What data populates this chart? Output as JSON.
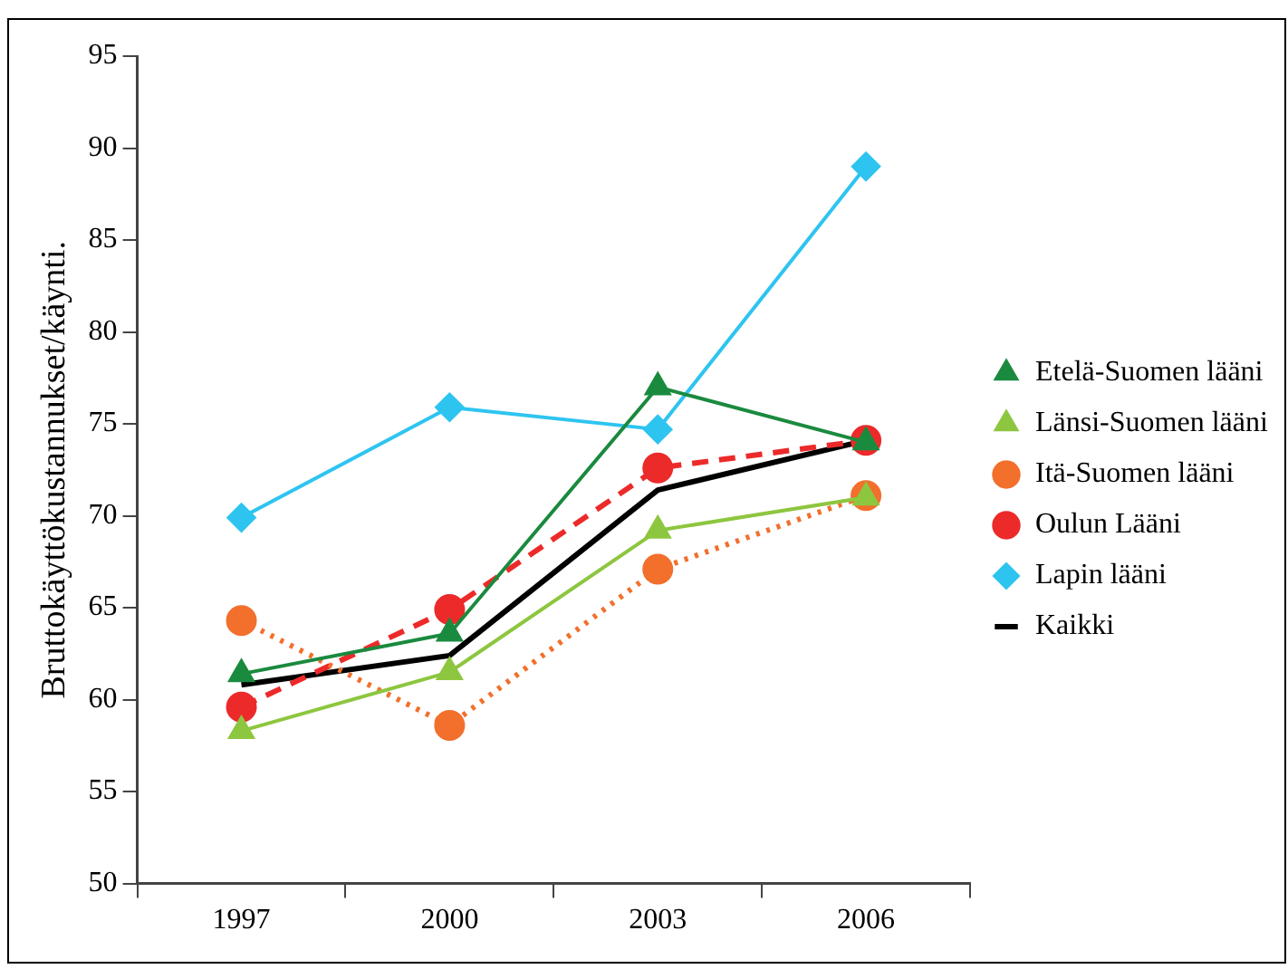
{
  "chart_data": {
    "type": "line",
    "ylabel": "Bruttokäyttökustannukset/käynti.",
    "categories": [
      "1997",
      "2000",
      "2003",
      "2006"
    ],
    "ylim": [
      50,
      95
    ],
    "yticks": [
      50,
      55,
      60,
      65,
      70,
      75,
      80,
      85,
      90,
      95
    ],
    "grid": false,
    "legend": "right",
    "series": [
      {
        "name": "Etelä-Suomen lääni",
        "color": "#1a8a3e",
        "marker": "triangle",
        "line_style": "solid",
        "values": [
          61.4,
          63.6,
          77,
          74
        ]
      },
      {
        "name": "Länsi-Suomen lääni",
        "color": "#8dc63f",
        "marker": "triangle",
        "line_style": "solid",
        "values": [
          58.3,
          61.5,
          69.2,
          71
        ]
      },
      {
        "name": "Itä-Suomen lääni",
        "color": "#f26f2c",
        "marker": "circle",
        "line_style": "dotted",
        "values": [
          64.3,
          58.6,
          67.1,
          71.1
        ]
      },
      {
        "name": "Oulun Lääni",
        "color": "#ec2a2a",
        "marker": "circle",
        "line_style": "dashed",
        "values": [
          59.6,
          64.9,
          72.6,
          74.1
        ]
      },
      {
        "name": "Lapin lääni",
        "color": "#2ec4f0",
        "marker": "diamond",
        "line_style": "solid",
        "values": [
          69.9,
          75.9,
          74.7,
          89
        ]
      },
      {
        "name": "Kaikki",
        "color": "#000000",
        "marker": "none",
        "line_style": "solid",
        "values": [
          60.8,
          62.4,
          71.4,
          74.1
        ]
      }
    ]
  }
}
